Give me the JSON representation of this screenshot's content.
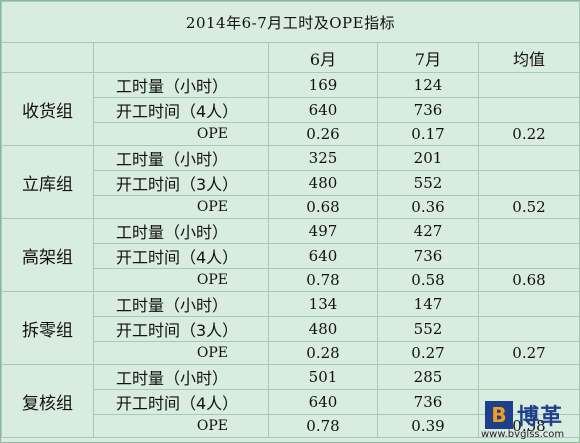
{
  "title": "2014年6-7月工时及OPE指标",
  "columns": {
    "col1": "6月",
    "col2": "7月",
    "avg": "均值"
  },
  "groups": [
    {
      "name": "收货组",
      "hours_label": "工时量（小时）",
      "hours": [
        "169",
        "124"
      ],
      "time_label": "开工时间（4人）",
      "time": [
        "640",
        "736"
      ],
      "ope_label": "OPE",
      "ope": [
        "0.26",
        "0.17"
      ],
      "avg": "0.22"
    },
    {
      "name": "立库组",
      "hours_label": "工时量（小时）",
      "hours": [
        "325",
        "201"
      ],
      "time_label": "开工时间（3人）",
      "time": [
        "480",
        "552"
      ],
      "ope_label": "OPE",
      "ope": [
        "0.68",
        "0.36"
      ],
      "avg": "0.52"
    },
    {
      "name": "高架组",
      "hours_label": "工时量（小时）",
      "hours": [
        "497",
        "427"
      ],
      "time_label": "开工时间（4人）",
      "time": [
        "640",
        "736"
      ],
      "ope_label": "OPE",
      "ope": [
        "0.78",
        "0.58"
      ],
      "avg": "0.68"
    },
    {
      "name": "拆零组",
      "hours_label": "工时量（小时）",
      "hours": [
        "134",
        "147"
      ],
      "time_label": "开工时间（3人）",
      "time": [
        "480",
        "552"
      ],
      "ope_label": "OPE",
      "ope": [
        "0.28",
        "0.27"
      ],
      "avg": "0.27"
    },
    {
      "name": "复核组",
      "hours_label": "工时量（小时）",
      "hours": [
        "501",
        "285"
      ],
      "time_label": "开工时间（4人）",
      "time": [
        "640",
        "736"
      ],
      "ope_label": "OPE",
      "ope": [
        "0.78",
        "0.39"
      ],
      "avg": "0.58"
    }
  ],
  "watermark": {
    "mark": "B",
    "brand": "博革",
    "url": "www.bvglss.com"
  }
}
